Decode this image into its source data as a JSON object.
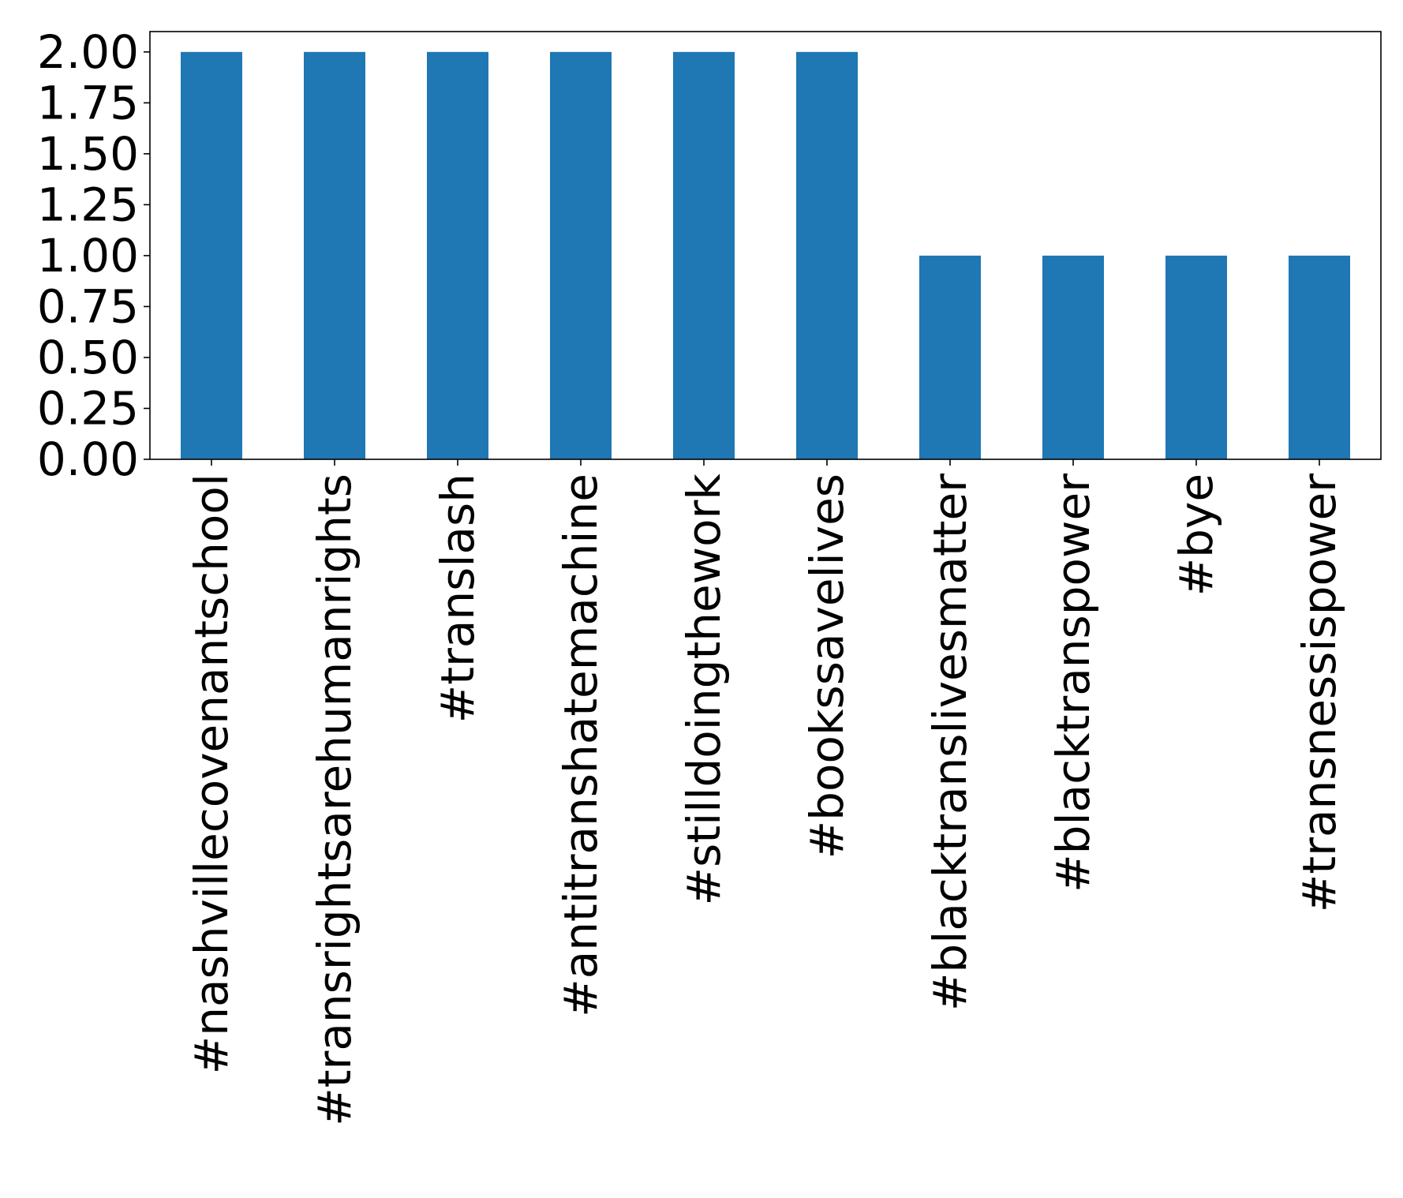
{
  "chart_data": {
    "type": "bar",
    "title": "",
    "xlabel": "",
    "ylabel": "",
    "categories": [
      "#nashvillecovenantschool",
      "#transrightsarehumanrights",
      "#translash",
      "#antitranshatemachine",
      "#stilldoingthework",
      "#bookssavelives",
      "#blacktranslivesmatter",
      "#blacktranspower",
      "#bye",
      "#transnessispower"
    ],
    "values": [
      2,
      2,
      2,
      2,
      2,
      2,
      1,
      1,
      1,
      1
    ],
    "ylim": [
      0,
      2.1
    ],
    "yticks": [
      "0.00",
      "0.25",
      "0.50",
      "0.75",
      "1.00",
      "1.25",
      "1.50",
      "1.75",
      "2.00"
    ],
    "bar_color": "#1f77b4",
    "grid": false,
    "legend": "none"
  }
}
